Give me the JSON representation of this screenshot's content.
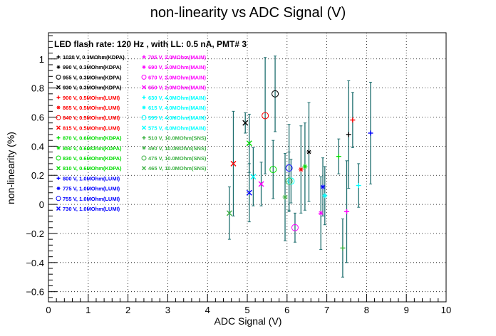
{
  "chart_data": {
    "type": "scatter",
    "title": "non-linearity vs ADC Signal (V)",
    "subtitle": "LED flash rate: 120 Hz , with LL: 0.5 nA, PMT# 3",
    "xlabel": "ADC Signal (V)",
    "ylabel": "non-linearity (%)",
    "xlim": [
      0,
      10
    ],
    "ylim": [
      -0.67,
      1.18
    ],
    "xticks": [
      "0",
      "1",
      "2",
      "3",
      "4",
      "5",
      "6",
      "7",
      "8",
      "9",
      "10"
    ],
    "yticks": [
      "−0.6",
      "−0.4",
      "−0.2",
      "0",
      "0.2",
      "0.4",
      "0.6",
      "0.8",
      "1"
    ],
    "ytick_values": [
      -0.6,
      -0.4,
      -0.2,
      0,
      0.2,
      0.4,
      0.6,
      0.8,
      1.0
    ],
    "grid": true,
    "error_bar_color": "#1f6f6f",
    "legend_left": [
      {
        "label": "1020 V, 0.3MOhm(KDPA)",
        "marker": "+",
        "color": "#000000"
      },
      {
        "label": "990 V, 0.3MOhm(KDPA)",
        "marker": "*",
        "color": "#000000"
      },
      {
        "label": "955 V, 0.3MOhm(KDPA)",
        "marker": "o",
        "color": "#000000"
      },
      {
        "label": "930 V, 0.3MOhm(KDPA)",
        "marker": "x",
        "color": "#000000"
      },
      {
        "label": "900 V, 0.5MOhm(LUMI)",
        "marker": "+",
        "color": "#ff0000"
      },
      {
        "label": "865 V, 0.5MOhm(LUMI)",
        "marker": "*",
        "color": "#ff0000"
      },
      {
        "label": "840 V, 0.5MOhm(LUMI)",
        "marker": "o",
        "color": "#ff0000"
      },
      {
        "label": "815 V, 0.5MOhm(LUMI)",
        "marker": "x",
        "color": "#ff0000"
      },
      {
        "label": "870 V, 0.6MOhm(KDPA)",
        "marker": "+",
        "color": "#00dd00"
      },
      {
        "label": "850 V, 0.6MOhm(KDPA)",
        "marker": "*",
        "color": "#00dd00"
      },
      {
        "label": "830 V, 0.6MOhm(KDPA)",
        "marker": "o",
        "color": "#00dd00"
      },
      {
        "label": "810 V, 0.6MOhm(KDPA)",
        "marker": "x",
        "color": "#00dd00"
      },
      {
        "label": "800 V, 1.0MOhm(LUMI)",
        "marker": "+",
        "color": "#0000ff"
      },
      {
        "label": "775 V, 1.0MOhm(LUMI)",
        "marker": "*",
        "color": "#0000ff"
      },
      {
        "label": "755 V, 1.0MOhm(LUMI)",
        "marker": "o",
        "color": "#0000ff"
      },
      {
        "label": "730 V, 1.0MOhm(LUMI)",
        "marker": "x",
        "color": "#0000ff"
      }
    ],
    "legend_right": [
      {
        "label": "705 V, 2.0MOhm(MAIN)",
        "marker": "+",
        "color": "#ff00ff"
      },
      {
        "label": "690 V, 2.0MOhm(MAIN)",
        "marker": "*",
        "color": "#ff00ff"
      },
      {
        "label": "670 V, 2.0MOhm(MAIN)",
        "marker": "o",
        "color": "#ff00ff"
      },
      {
        "label": "650 V, 2.0MOhm(MAIN)",
        "marker": "x",
        "color": "#ff00ff"
      },
      {
        "label": "630 V, 4.0MOhm(MAIN)",
        "marker": "+",
        "color": "#00ffff"
      },
      {
        "label": "615 V, 4.0MOhm(MAIN)",
        "marker": "*",
        "color": "#00ffff"
      },
      {
        "label": "595 V, 4.0MOhm(MAIN)",
        "marker": "o",
        "color": "#00ffff"
      },
      {
        "label": "575 V, 4.0MOhm(MAIN)",
        "marker": "x",
        "color": "#00ffff"
      },
      {
        "label": "510 V, 10.0MOhm(SNS)",
        "marker": "+",
        "color": "#3cb043"
      },
      {
        "label": "490 V, 10.0MOhm(SNS)",
        "marker": "*",
        "color": "#3cb043"
      },
      {
        "label": "475 V, 10.0MOhm(SNS)",
        "marker": "o",
        "color": "#3cb043"
      },
      {
        "label": "465 V, 10.0MOhm(SNS)",
        "marker": "x",
        "color": "#3cb043"
      }
    ],
    "points": [
      {
        "series": "1020 V, 0.3MOhm(KDPA)",
        "marker": "+",
        "color": "#000000",
        "x": 7.55,
        "y": 0.48,
        "err": 0.37
      },
      {
        "series": "990 V, 0.3MOhm(KDPA)",
        "marker": "*",
        "color": "#000000",
        "x": 6.55,
        "y": 0.36,
        "err": 0.34
      },
      {
        "series": "955 V, 0.3MOhm(KDPA)",
        "marker": "o",
        "color": "#000000",
        "x": 5.7,
        "y": 0.76,
        "err": 0.26
      },
      {
        "series": "930 V, 0.3MOhm(KDPA)",
        "marker": "x",
        "color": "#000000",
        "x": 4.95,
        "y": 0.56,
        "err": 0.07
      },
      {
        "series": "900 V, 0.5MOhm(LUMI)",
        "marker": "+",
        "color": "#ff0000",
        "x": 7.65,
        "y": 0.58,
        "err": 0.19
      },
      {
        "series": "865 V, 0.5MOhm(LUMI)",
        "marker": "*",
        "color": "#ff0000",
        "x": 6.35,
        "y": 0.24,
        "err": 0.3
      },
      {
        "series": "840 V, 0.5MOhm(LUMI)",
        "marker": "o",
        "color": "#ff0000",
        "x": 5.45,
        "y": 0.61,
        "err": 0.4
      },
      {
        "series": "815 V, 0.5MOhm(LUMI)",
        "marker": "x",
        "color": "#ff0000",
        "x": 4.65,
        "y": 0.28,
        "err": 0.36
      },
      {
        "series": "870 V, 0.6MOhm(KDPA)",
        "marker": "+",
        "color": "#00dd00",
        "x": 7.3,
        "y": 0.33,
        "err": 0.12
      },
      {
        "series": "850 V, 0.6MOhm(KDPA)",
        "marker": "*",
        "color": "#00dd00",
        "x": 6.45,
        "y": 0.26,
        "err": 0.3
      },
      {
        "series": "830 V, 0.6MOhm(KDPA)",
        "marker": "o",
        "color": "#00dd00",
        "x": 5.65,
        "y": 0.24,
        "err": 0.2
      },
      {
        "series": "810 V, 0.6MOhm(KDPA)",
        "marker": "x",
        "color": "#00dd00",
        "x": 5.05,
        "y": 0.42,
        "err": 0.2
      },
      {
        "series": "800 V, 1.0MOhm(LUMI)",
        "marker": "+",
        "color": "#0000ff",
        "x": 8.1,
        "y": 0.49,
        "err": 0.35
      },
      {
        "series": "775 V, 1.0MOhm(LUMI)",
        "marker": "*",
        "color": "#0000ff",
        "x": 6.9,
        "y": 0.12,
        "err": 0.2
      },
      {
        "series": "755 V, 1.0MOhm(LUMI)",
        "marker": "o",
        "color": "#0000ff",
        "x": 6.05,
        "y": 0.25,
        "err": 0.3
      },
      {
        "series": "730 V, 1.0MOhm(LUMI)",
        "marker": "x",
        "color": "#0000ff",
        "x": 5.05,
        "y": 0.08,
        "err": 0.2
      },
      {
        "series": "705 V, 2.0MOhm(MAIN)",
        "marker": "+",
        "color": "#ff00ff",
        "x": 7.5,
        "y": -0.05,
        "err": 0.35
      },
      {
        "series": "690 V, 2.0MOhm(MAIN)",
        "marker": "*",
        "color": "#ff00ff",
        "x": 6.85,
        "y": -0.06,
        "err": 0.25
      },
      {
        "series": "670 V, 2.0MOhm(MAIN)",
        "marker": "o",
        "color": "#ff00ff",
        "x": 6.2,
        "y": -0.16,
        "err": 0.1
      },
      {
        "series": "650 V, 2.0MOhm(MAIN)",
        "marker": "x",
        "color": "#ff00ff",
        "x": 5.35,
        "y": 0.14,
        "err": 0.15
      },
      {
        "series": "630 V, 4.0MOhm(MAIN)",
        "marker": "+",
        "color": "#00ffff",
        "x": 7.8,
        "y": 0.13,
        "err": 0.15
      },
      {
        "series": "615 V, 4.0MOhm(MAIN)",
        "marker": "*",
        "color": "#00ffff",
        "x": 6.95,
        "y": 0.06,
        "err": 0.2
      },
      {
        "series": "595 V, 4.0MOhm(MAIN)",
        "marker": "o",
        "color": "#00ffff",
        "x": 6.1,
        "y": 0.16,
        "err": 0.15
      },
      {
        "series": "575 V, 4.0MOhm(MAIN)",
        "marker": "x",
        "color": "#00ffff",
        "x": 5.15,
        "y": 0.19,
        "err": 0.2
      },
      {
        "series": "510 V, 10.0MOhm(SNS)",
        "marker": "+",
        "color": "#3cb043",
        "x": 7.4,
        "y": -0.3,
        "err": 0.2
      },
      {
        "series": "490 V, 10.0MOhm(SNS)",
        "marker": "*",
        "color": "#3cb043",
        "x": 5.95,
        "y": 0.05,
        "err": 0.3
      },
      {
        "series": "475 V, 10.0MOhm(SNS)",
        "marker": "o",
        "color": "#3cb043",
        "x": 6.05,
        "y": 0.16,
        "err": 0.2
      },
      {
        "series": "465 V, 10.0MOhm(SNS)",
        "marker": "x",
        "color": "#3cb043",
        "x": 4.55,
        "y": -0.06,
        "err": 0.18
      }
    ]
  }
}
